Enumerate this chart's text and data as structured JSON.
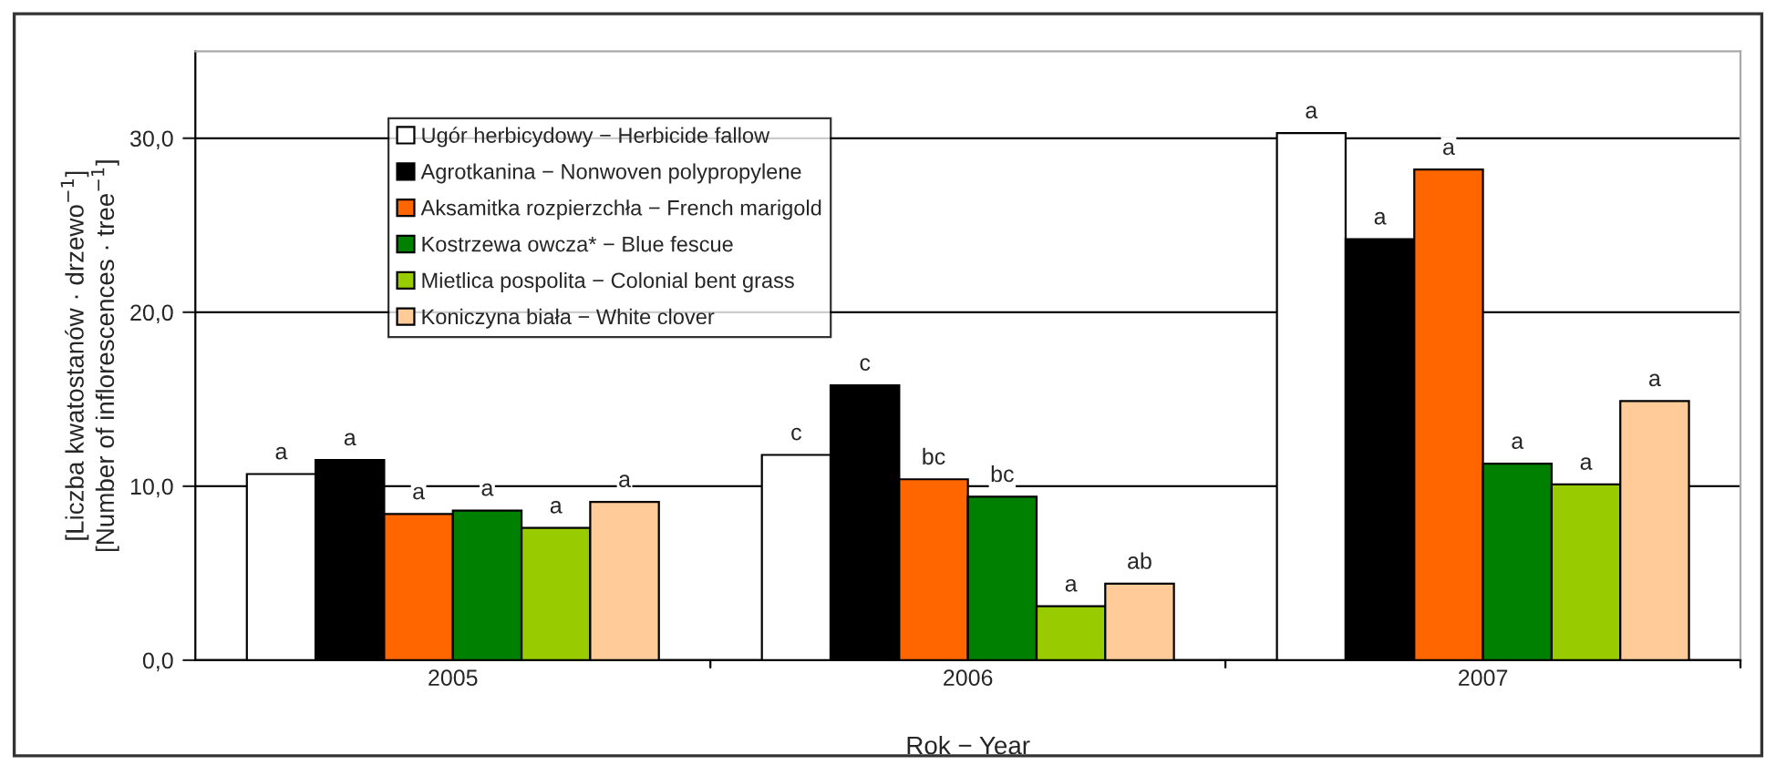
{
  "chart_data": {
    "type": "bar",
    "categories": [
      "2005",
      "2006",
      "2007"
    ],
    "xlabel": "Rok − Year",
    "ylabel": "[Liczba kwatostanów · drzewo$^{−1}$]\n[Number of inflorescences · tree$^{−1}$]",
    "ylim": [
      0,
      35
    ],
    "yticks": [
      {
        "value": 0,
        "label": "0,0"
      },
      {
        "value": 10,
        "label": "10,0"
      },
      {
        "value": 20,
        "label": "20,0"
      },
      {
        "value": 30,
        "label": "30,0"
      }
    ],
    "grid": "y",
    "legend": "top left",
    "series": [
      {
        "name": "Ugór herbicydowy − Herbicide fallow",
        "color": "#ffffff",
        "values": [
          10.7,
          11.8,
          30.3
        ],
        "value_labels": [
          "a",
          "c",
          "a"
        ]
      },
      {
        "name": "Agrotkanina − Nonwoven polypropylene",
        "color": "#000000",
        "values": [
          11.5,
          15.8,
          24.2
        ],
        "value_labels": [
          "a",
          "c",
          "a"
        ]
      },
      {
        "name": "Aksamitka rozpierzchła − French marigold",
        "color": "#ff6600",
        "values": [
          8.4,
          10.4,
          28.2
        ],
        "value_labels": [
          "a",
          "bc",
          "a"
        ]
      },
      {
        "name": "Kostrzewa owcza* − Blue fescue",
        "color": "#008000",
        "values": [
          8.6,
          9.4,
          11.3
        ],
        "value_labels": [
          "a",
          "bc",
          "a"
        ]
      },
      {
        "name": "Mietlica pospolita − Colonial bent grass",
        "color": "#99cc00",
        "values": [
          7.6,
          3.1,
          10.1
        ],
        "value_labels": [
          "a",
          "a",
          "a"
        ]
      },
      {
        "name": "Koniczyna biała − White clover",
        "color": "#ffcc99",
        "values": [
          9.1,
          4.4,
          14.9
        ],
        "value_labels": [
          "a",
          "ab",
          "a"
        ]
      }
    ]
  }
}
